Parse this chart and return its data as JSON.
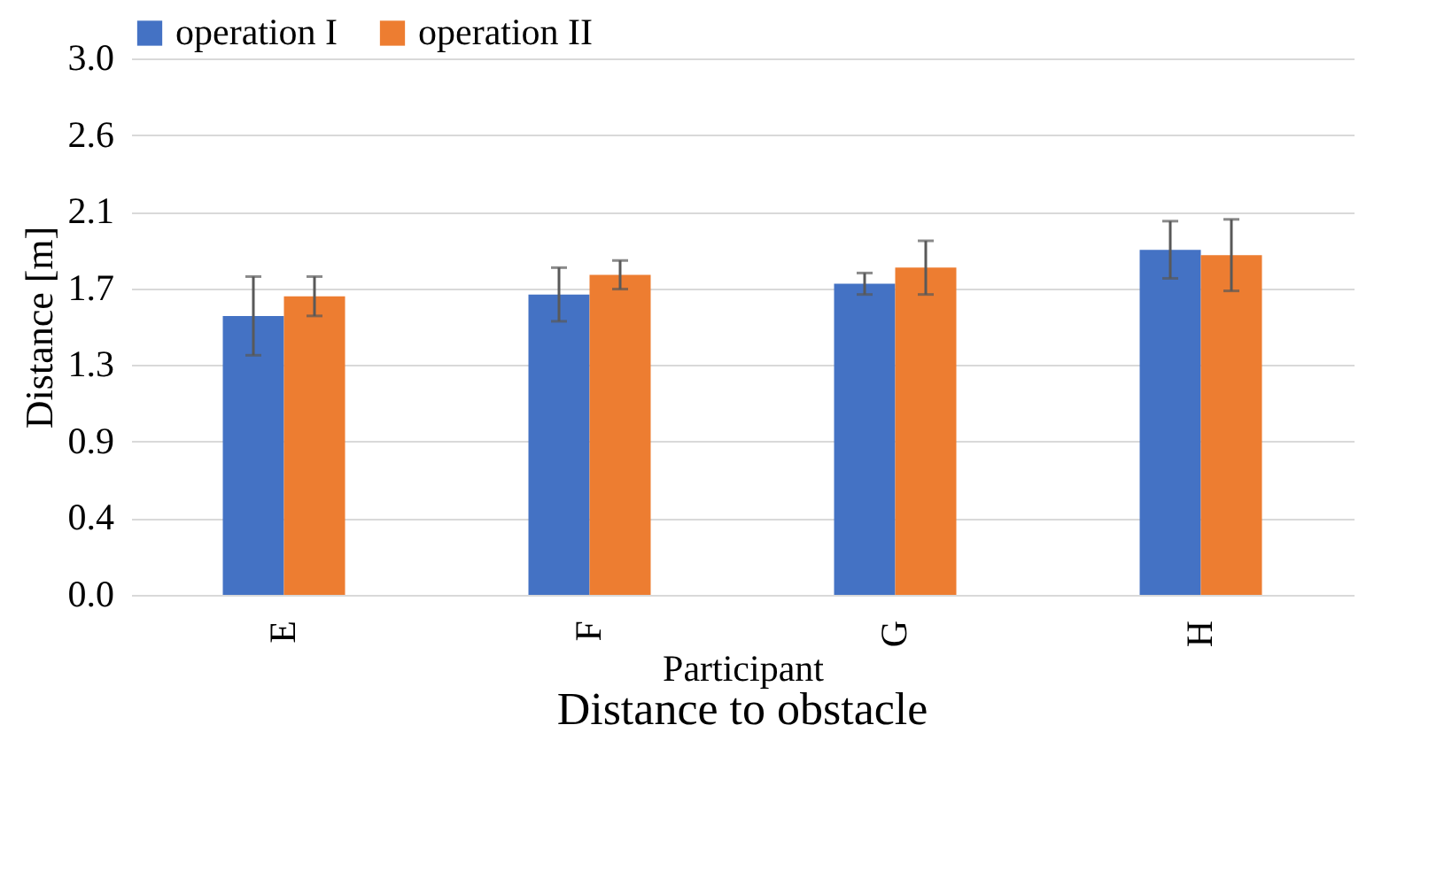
{
  "chart_data": {
    "type": "bar",
    "title": "Distance to obstacle",
    "xlabel": "Participant",
    "ylabel": "Distance [m]",
    "categories": [
      "E",
      "F",
      "G",
      "H"
    ],
    "series": [
      {
        "name": "operation I",
        "color": "#4472c4",
        "values": [
          1.56,
          1.68,
          1.74,
          1.93
        ],
        "errors": [
          0.22,
          0.15,
          0.06,
          0.16
        ]
      },
      {
        "name": "operation II",
        "color": "#ed7d31",
        "values": [
          1.67,
          1.79,
          1.83,
          1.9
        ],
        "errors": [
          0.11,
          0.08,
          0.15,
          0.2
        ]
      }
    ],
    "ylim": [
      0,
      3
    ],
    "yticks": [
      {
        "value": 0,
        "label": "0.0"
      },
      {
        "value": 0.4286,
        "label": "0.4"
      },
      {
        "value": 0.8571,
        "label": "0.9"
      },
      {
        "value": 1.2857,
        "label": "1.3"
      },
      {
        "value": 1.7143,
        "label": "1.7"
      },
      {
        "value": 2.1429,
        "label": "2.1"
      },
      {
        "value": 2.5714,
        "label": "2.6"
      },
      {
        "value": 3,
        "label": "3.0"
      }
    ],
    "grid": "y",
    "legend": "top"
  }
}
